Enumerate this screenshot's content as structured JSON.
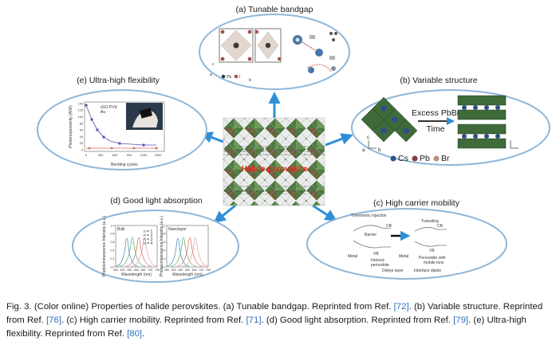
{
  "center": {
    "label": "Halide perovskite"
  },
  "panels": {
    "a": {
      "title": "(a) Tunable bandgap",
      "legend": [
        "Pb",
        "I"
      ],
      "axes": [
        "a",
        "b",
        "c"
      ]
    },
    "b": {
      "title": "(b) Variable structure",
      "excess": "Excess PbBr",
      "excess_sub": "2",
      "time": "Time",
      "legend": [
        "Cs",
        "Pb",
        "Br"
      ],
      "axes": [
        "a",
        "b",
        "c"
      ]
    },
    "c": {
      "title": "(c) High carrier mobility",
      "thermionic": "Thermionic injection",
      "tunneling": "Tunneling",
      "cb": "CB",
      "cb2": "CB",
      "vb": "VB",
      "vb2": "VB",
      "barrier": "Barrier",
      "metal": "Metal",
      "metal2": "Metal",
      "intrinsic": "Intrinsic",
      "perovskite": "perovskite",
      "with_ions": "Perovskite with",
      "mobile_ions": "mobile ions",
      "debye": "Debye layer",
      "interface": "Interface dipole"
    },
    "d": {
      "title": "(d) Good light absorption",
      "bulk": "Bulk",
      "nanolayer": "Nanolayer",
      "ylabel1": "Photoluminescence Intensity (a.u.)",
      "ylabel2": "Photoluminescence Intensity (a.u.)",
      "xlabel1": "Wavelength (nm)",
      "xlabel2": "Wavelength (nm)",
      "xticks": [
        "450",
        "500",
        "550",
        "600",
        "650",
        "700",
        "750"
      ],
      "yticks": [
        "0.0",
        "0.2",
        "0.4",
        "0.6",
        "0.8",
        "1.0"
      ],
      "legend": [
        "n = 1",
        "n = 2",
        "n = 3",
        "n = 4"
      ]
    },
    "e": {
      "title": "(e) Ultra-high flexibility",
      "ylabel": "Photoresponsivity (A/W)",
      "xlabel": "Bending cycles",
      "xticks": [
        "0",
        "300",
        "600",
        "900",
        "1200",
        "1500"
      ],
      "yticks": [
        "0",
        "20",
        "40",
        "60",
        "80",
        "100",
        "120",
        "140"
      ],
      "legend": [
        "rGO-PVd",
        "Au"
      ]
    }
  },
  "caption": {
    "lead": "Fig. 3. (Color online) Properties of halide perovskites. (a) Tunable bandgap. Reprinted from Ref. ",
    "ref_a": "[72]",
    "t_b": ". (b) Variable structure. Reprinted from Ref. ",
    "ref_b": "[76]",
    "t_c": ". (c) High carrier mobility. Reprinted from Ref. ",
    "ref_c": "[71]",
    "t_d": ". (d) Good light absorption. Reprinted from Ref. ",
    "ref_d": "[79]",
    "t_e": ". (e) Ultra-high flexibility. Reprinted from Ref. ",
    "ref_e": "[80]",
    "end": "."
  },
  "colors": {
    "ellipse_border": "#8fb6d8",
    "arrow": "#2e8fd6",
    "caption_ref": "#2f6fbf",
    "octahedra": "#3f6b3a",
    "cs": "#2f4f88",
    "pb": "#8a3a3a",
    "br": "#b98e7a"
  }
}
